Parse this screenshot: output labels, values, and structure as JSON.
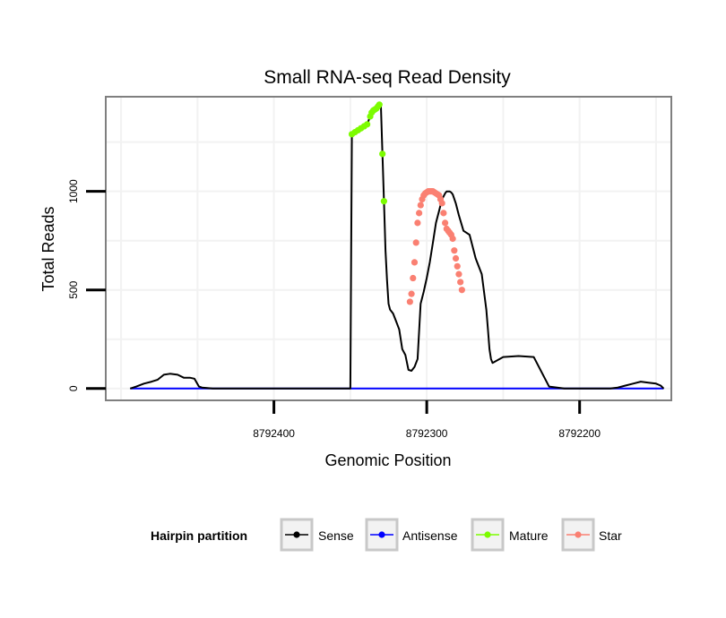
{
  "chart_data": {
    "type": "line",
    "title": "Small RNA-seq Read Density",
    "xlabel": "Genomic Position",
    "ylabel": "Total Reads",
    "x_reversed": true,
    "xlim": [
      8792140,
      8792510
    ],
    "ylim": [
      -60,
      1480
    ],
    "x_ticks": [
      8792400,
      8792300,
      8792200
    ],
    "x_tick_labels": [
      "8792400",
      "8792300",
      "8792200"
    ],
    "y_ticks": [
      0,
      500,
      1000
    ],
    "y_tick_labels": [
      "0",
      "500",
      "1000"
    ],
    "grid": true,
    "legend": {
      "title": "Hairpin partition",
      "position": "bottom",
      "entries": [
        {
          "name": "Sense",
          "color": "#000000"
        },
        {
          "name": "Antisense",
          "color": "#0000ff"
        },
        {
          "name": "Mature",
          "color": "#7cfc00"
        },
        {
          "name": "Star",
          "color": "#fa8072"
        }
      ]
    },
    "series": [
      {
        "name": "Sense",
        "color": "#000000",
        "marker": false,
        "x": [
          8792494,
          8792490,
          8792485,
          8792480,
          8792476,
          8792472,
          8792468,
          8792463,
          8792459,
          8792455,
          8792452,
          8792449,
          8792447,
          8792440,
          8792420,
          8792400,
          8792380,
          8792360,
          8792350,
          8792349,
          8792347,
          8792345,
          8792343,
          8792341,
          8792339,
          8792337,
          8792336,
          8792335,
          8792334,
          8792333,
          8792332,
          8792331,
          8792330,
          8792329,
          8792328,
          8792327,
          8792326,
          8792325,
          8792324,
          8792323,
          8792322,
          8792320,
          8792318,
          8792316,
          8792314,
          8792312,
          8792310,
          8792308,
          8792306,
          8792304,
          8792302,
          8792300,
          8792298,
          8792296,
          8792294,
          8792292,
          8792290,
          8792288,
          8792287,
          8792286,
          8792285,
          8792284,
          8792283,
          8792281,
          8792279,
          8792276,
          8792272,
          8792268,
          8792264,
          8792261,
          8792260,
          8792259,
          8792258,
          8792257,
          8792250,
          8792240,
          8792230,
          8792220,
          8792210,
          8792200,
          8792190,
          8792188,
          8792185,
          8792180,
          8792175,
          8792170,
          8792165,
          8792160,
          8792155,
          8792150,
          8792147,
          8792145
        ],
        "y": [
          0,
          10,
          25,
          35,
          45,
          70,
          75,
          70,
          55,
          55,
          50,
          10,
          5,
          0,
          0,
          0,
          0,
          0,
          0,
          1290,
          1300,
          1310,
          1320,
          1330,
          1340,
          1380,
          1400,
          1410,
          1415,
          1420,
          1430,
          1440,
          1430,
          1190,
          950,
          700,
          550,
          430,
          400,
          390,
          380,
          340,
          300,
          200,
          170,
          95,
          90,
          110,
          150,
          430,
          490,
          560,
          640,
          740,
          840,
          900,
          960,
          990,
          1000,
          1000,
          1000,
          995,
          985,
          940,
          880,
          800,
          780,
          660,
          580,
          400,
          300,
          200,
          150,
          130,
          160,
          165,
          160,
          10,
          0,
          0,
          0,
          0,
          0,
          0,
          5,
          15,
          25,
          35,
          30,
          25,
          15,
          0
        ]
      },
      {
        "name": "Antisense",
        "color": "#0000ff",
        "marker": false,
        "x": [
          8792494,
          8792145
        ],
        "y": [
          0,
          0
        ]
      },
      {
        "name": "Mature",
        "color": "#7cfc00",
        "marker": true,
        "x": [
          8792349,
          8792347,
          8792345,
          8792343,
          8792341,
          8792339,
          8792337,
          8792336,
          8792335,
          8792334,
          8792333,
          8792332,
          8792331,
          8792329,
          8792328
        ],
        "y": [
          1290,
          1300,
          1310,
          1320,
          1330,
          1340,
          1380,
          1400,
          1410,
          1415,
          1420,
          1430,
          1440,
          1190,
          950
        ]
      },
      {
        "name": "Star",
        "color": "#fa8072",
        "marker": true,
        "x": [
          8792311,
          8792310,
          8792309,
          8792308,
          8792307,
          8792306,
          8792305,
          8792304,
          8792303,
          8792302,
          8792301,
          8792300,
          8792299,
          8792298,
          8792297,
          8792296,
          8792295,
          8792294,
          8792293,
          8792292,
          8792291,
          8792290,
          8792289,
          8792288,
          8792287,
          8792286,
          8792285,
          8792284,
          8792283,
          8792282,
          8792281,
          8792280,
          8792279,
          8792278,
          8792277
        ],
        "y": [
          440,
          480,
          560,
          640,
          740,
          840,
          890,
          930,
          960,
          980,
          990,
          995,
          1000,
          1000,
          1000,
          1000,
          995,
          990,
          985,
          980,
          960,
          940,
          890,
          840,
          810,
          800,
          790,
          780,
          760,
          700,
          660,
          620,
          580,
          540,
          500
        ]
      }
    ]
  }
}
